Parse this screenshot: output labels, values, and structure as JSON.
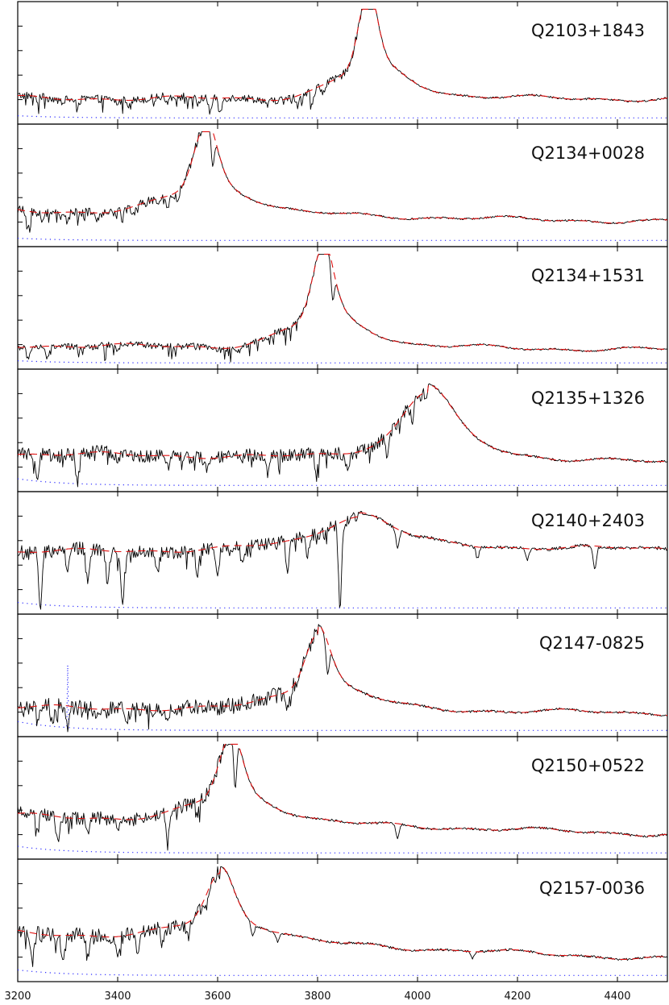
{
  "chart_data": {
    "type": "line",
    "x_range": [
      3200,
      4500
    ],
    "x_ticks": [
      3200,
      3400,
      3600,
      3800,
      4000,
      4200,
      4400
    ],
    "x_tick_labels": [
      "3200",
      "3400",
      "3600",
      "3800",
      "4000",
      "4200",
      "4400"
    ],
    "styles": {
      "spectrum_color": "#000000",
      "continuum_fit_color": "#e01010",
      "error_color": "#2b2bff"
    },
    "panels": [
      {
        "name": "Q2103+1843",
        "peak_x": 3900,
        "peak_height": 0.92,
        "peak_width": 18,
        "broad_width": 70,
        "base_left": 0.19,
        "base_right": 0.18,
        "noise_left": 0.035,
        "noise_right": 0.008,
        "absorption": [
          [
            3240,
            0.03
          ],
          [
            3320,
            0.05
          ],
          [
            3400,
            0.04
          ],
          [
            3500,
            0.05
          ],
          [
            3560,
            0.06
          ],
          [
            3585,
            0.12
          ],
          [
            3605,
            0.14
          ],
          [
            3700,
            0.05
          ],
          [
            3760,
            0.1
          ],
          [
            3790,
            0.12
          ],
          [
            3810,
            0.08
          ]
        ],
        "error": 0.02
      },
      {
        "name": "Q2134+0028",
        "peak_x": 3575,
        "peak_height": 0.78,
        "peak_width": 22,
        "broad_width": 80,
        "base_left": 0.28,
        "base_right": 0.18,
        "noise_left": 0.04,
        "noise_right": 0.008,
        "absorption": [
          [
            3220,
            0.18
          ],
          [
            3250,
            0.08
          ],
          [
            3300,
            0.1
          ],
          [
            3360,
            0.08
          ],
          [
            3430,
            0.1
          ],
          [
            3480,
            0.08
          ],
          [
            3500,
            0.12
          ],
          [
            3520,
            0.08
          ],
          [
            3590,
            0.32
          ]
        ],
        "error": 0.02
      },
      {
        "name": "Q2134+1531",
        "peak_x": 3810,
        "peak_height": 0.88,
        "peak_width": 20,
        "broad_width": 75,
        "base_left": 0.17,
        "base_right": 0.13,
        "noise_left": 0.03,
        "noise_right": 0.007,
        "absorption": [
          [
            3220,
            0.1
          ],
          [
            3260,
            0.12
          ],
          [
            3400,
            0.05
          ],
          [
            3600,
            0.04
          ],
          [
            3640,
            0.06
          ],
          [
            3700,
            0.04
          ],
          [
            3830,
            0.3
          ]
        ],
        "error": 0.02
      },
      {
        "name": "Q2135+1326",
        "peak_x": 4020,
        "peak_height": 0.6,
        "peak_width": 45,
        "broad_width": 110,
        "base_left": 0.3,
        "base_right": 0.22,
        "noise_left": 0.06,
        "noise_right": 0.01,
        "absorption": [
          [
            3240,
            0.2
          ],
          [
            3320,
            0.26
          ],
          [
            3400,
            0.1
          ],
          [
            3500,
            0.12
          ],
          [
            3580,
            0.1
          ],
          [
            3700,
            0.16
          ],
          [
            3800,
            0.12
          ],
          [
            3860,
            0.14
          ],
          [
            3940,
            0.2
          ],
          [
            3990,
            0.14
          ]
        ],
        "error": 0.06
      },
      {
        "name": "Q2140+2403",
        "peak_x": 3880,
        "peak_height": 0.3,
        "peak_width": 60,
        "broad_width": 160,
        "base_left": 0.52,
        "base_right": 0.55,
        "noise_left": 0.06,
        "noise_right": 0.015,
        "absorption": [
          [
            3245,
            0.5
          ],
          [
            3300,
            0.22
          ],
          [
            3340,
            0.3
          ],
          [
            3380,
            0.28
          ],
          [
            3410,
            0.45
          ],
          [
            3480,
            0.22
          ],
          [
            3560,
            0.2
          ],
          [
            3600,
            0.24
          ],
          [
            3650,
            0.18
          ],
          [
            3740,
            0.26
          ],
          [
            3780,
            0.2
          ],
          [
            3845,
            0.75
          ],
          [
            3960,
            0.16
          ],
          [
            4120,
            0.1
          ],
          [
            4220,
            0.1
          ],
          [
            4355,
            0.22
          ]
        ],
        "error": 0.05
      },
      {
        "name": "Q2147-0825",
        "peak_x": 3800,
        "peak_height": 0.7,
        "peak_width": 24,
        "broad_width": 85,
        "base_left": 0.22,
        "base_right": 0.17,
        "noise_left": 0.07,
        "noise_right": 0.01,
        "absorption": [
          [
            3240,
            0.15
          ],
          [
            3270,
            0.18
          ],
          [
            3300,
            0.22
          ],
          [
            3360,
            0.08
          ],
          [
            3420,
            0.1
          ],
          [
            3500,
            0.06
          ],
          [
            3600,
            0.05
          ],
          [
            3740,
            0.12
          ],
          [
            3820,
            0.28
          ]
        ],
        "error": 0.08,
        "error_spike_x": 3300
      },
      {
        "name": "Q2150+0522",
        "peak_x": 3625,
        "peak_height": 0.75,
        "peak_width": 22,
        "broad_width": 80,
        "base_left": 0.35,
        "base_right": 0.18,
        "noise_left": 0.06,
        "noise_right": 0.01,
        "absorption": [
          [
            3240,
            0.15
          ],
          [
            3280,
            0.2
          ],
          [
            3340,
            0.14
          ],
          [
            3400,
            0.12
          ],
          [
            3500,
            0.3
          ],
          [
            3560,
            0.1
          ],
          [
            3635,
            0.48
          ],
          [
            3960,
            0.14
          ]
        ],
        "error": 0.06
      },
      {
        "name": "Q2157-0036",
        "peak_x": 3605,
        "peak_height": 0.6,
        "peak_width": 26,
        "broad_width": 90,
        "base_left": 0.4,
        "base_right": 0.16,
        "noise_left": 0.07,
        "noise_right": 0.01,
        "absorption": [
          [
            3230,
            0.26
          ],
          [
            3290,
            0.2
          ],
          [
            3340,
            0.22
          ],
          [
            3400,
            0.18
          ],
          [
            3440,
            0.14
          ],
          [
            3490,
            0.16
          ],
          [
            3540,
            0.14
          ],
          [
            3580,
            0.12
          ],
          [
            3670,
            0.12
          ],
          [
            3720,
            0.08
          ],
          [
            4110,
            0.06
          ]
        ],
        "error": 0.05
      }
    ]
  }
}
